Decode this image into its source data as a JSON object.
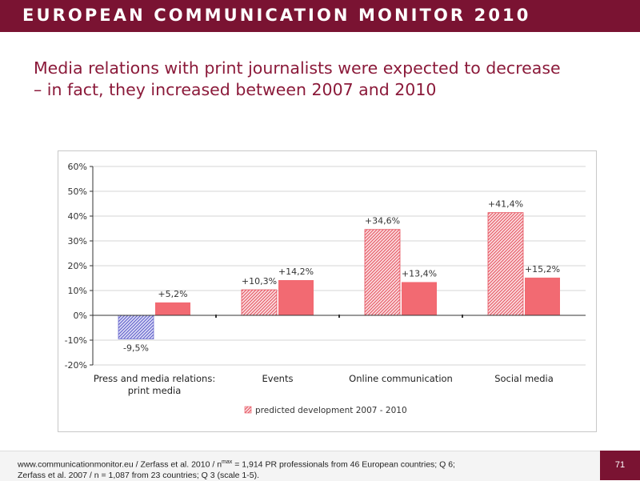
{
  "header": {
    "brand": "EUROPEAN COMMUNICATION MONITOR 2010",
    "bar_color": "#7a1332"
  },
  "slide": {
    "title_line1": "Media relations with print journalists were expected to decrease",
    "title_line2": "– in fact, they increased between 2007 and 2010",
    "title_color": "#8b1a3a",
    "page_number": "71"
  },
  "footer": {
    "line1_prefix": "www.communicationmonitor.eu / Zerfass et al. 2010 / n",
    "line1_sup": "max",
    "line1_suffix": " = 1,914 PR professionals from 46 European countries; Q 6;",
    "line2": "Zerfass et al. 2007 / n = 1,087 from 23 countries; Q 3 (scale 1-5)."
  },
  "chart_data": {
    "type": "bar",
    "categories": [
      "Press and media relations:\nprint media",
      "Events",
      "Online communication",
      "Social media"
    ],
    "series": [
      {
        "name": "predicted development 2007 - 2010",
        "values": [
          -9.5,
          10.3,
          34.6,
          41.4
        ],
        "labels": [
          "-9,5%",
          "+10,3%",
          "+34,6%",
          "+41,4%"
        ],
        "color": "#ef6b73",
        "negative_color": "#6f6fd0",
        "pattern": "diagonal-hatch"
      },
      {
        "values": [
          5.2,
          14.2,
          13.4,
          15.2
        ],
        "labels": [
          "+5,2%",
          "+14,2%",
          "+13,4%",
          "+15,2%"
        ],
        "color": "#f26a72",
        "pattern": "solid"
      }
    ],
    "ylim": [
      -20,
      60
    ],
    "yticks": [
      -20,
      -10,
      0,
      10,
      20,
      30,
      40,
      50,
      60
    ],
    "ytick_labels": [
      "-20%",
      "-10%",
      "0%",
      "10%",
      "20%",
      "30%",
      "40%",
      "50%",
      "60%"
    ],
    "grid": true,
    "legend_position": "bottom-center"
  }
}
